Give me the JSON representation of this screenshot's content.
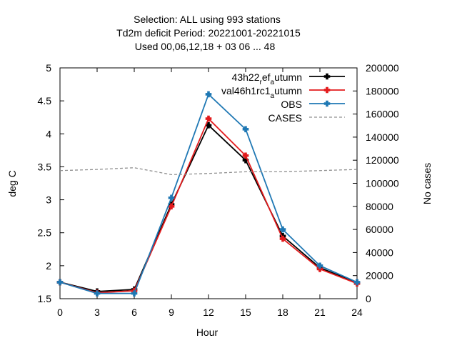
{
  "chart_data": {
    "type": "line",
    "title_lines": [
      "Selection: ALL using    993 stations",
      "Td2m deficit   Period: 20221001-20221015",
      "Used  00,06,12,18  + 03 06 ... 48"
    ],
    "xlabel": "Hour",
    "ylabel": "deg C",
    "y2label": "No cases",
    "x": [
      0,
      3,
      6,
      9,
      12,
      15,
      18,
      21,
      24
    ],
    "xlim": [
      0,
      24
    ],
    "ylim": [
      1.5,
      5
    ],
    "y2lim": [
      0,
      200000
    ],
    "x_ticks": [
      "0",
      "3",
      "6",
      "9",
      "12",
      "15",
      "18",
      "21",
      "24"
    ],
    "y_ticks": [
      "1.5",
      "2",
      "2.5",
      "3",
      "3.5",
      "4",
      "4.5",
      "5"
    ],
    "y2_ticks": [
      "0",
      "20000",
      "40000",
      "60000",
      "80000",
      "100000",
      "120000",
      "140000",
      "160000",
      "180000",
      "200000"
    ],
    "grid": false,
    "legend_position": "top-right",
    "series": [
      {
        "name_parts": [
          "43h22",
          "r",
          "ef",
          "a",
          "utumn"
        ],
        "color": "#000000",
        "axis": "y1",
        "style": "solid",
        "values": [
          1.75,
          1.61,
          1.64,
          2.93,
          4.13,
          3.6,
          2.45,
          1.97,
          1.74
        ]
      },
      {
        "name_parts": [
          "val46h1rc1",
          "a",
          "utumn"
        ],
        "color": "#e31a1c",
        "axis": "y1",
        "style": "solid",
        "values": [
          1.75,
          1.59,
          1.62,
          2.9,
          4.23,
          3.67,
          2.41,
          1.95,
          1.73
        ]
      },
      {
        "name": "OBS",
        "color": "#1f78b4",
        "axis": "y1",
        "style": "solid",
        "values": [
          1.75,
          1.58,
          1.58,
          3.03,
          4.6,
          4.07,
          2.55,
          2.0,
          1.75
        ]
      },
      {
        "name": "CASES",
        "color": "#909090",
        "axis": "y2",
        "style": "dashed",
        "values": [
          111000,
          112000,
          113500,
          107500,
          108500,
          110000,
          110000,
          111000,
          112000
        ]
      }
    ]
  }
}
